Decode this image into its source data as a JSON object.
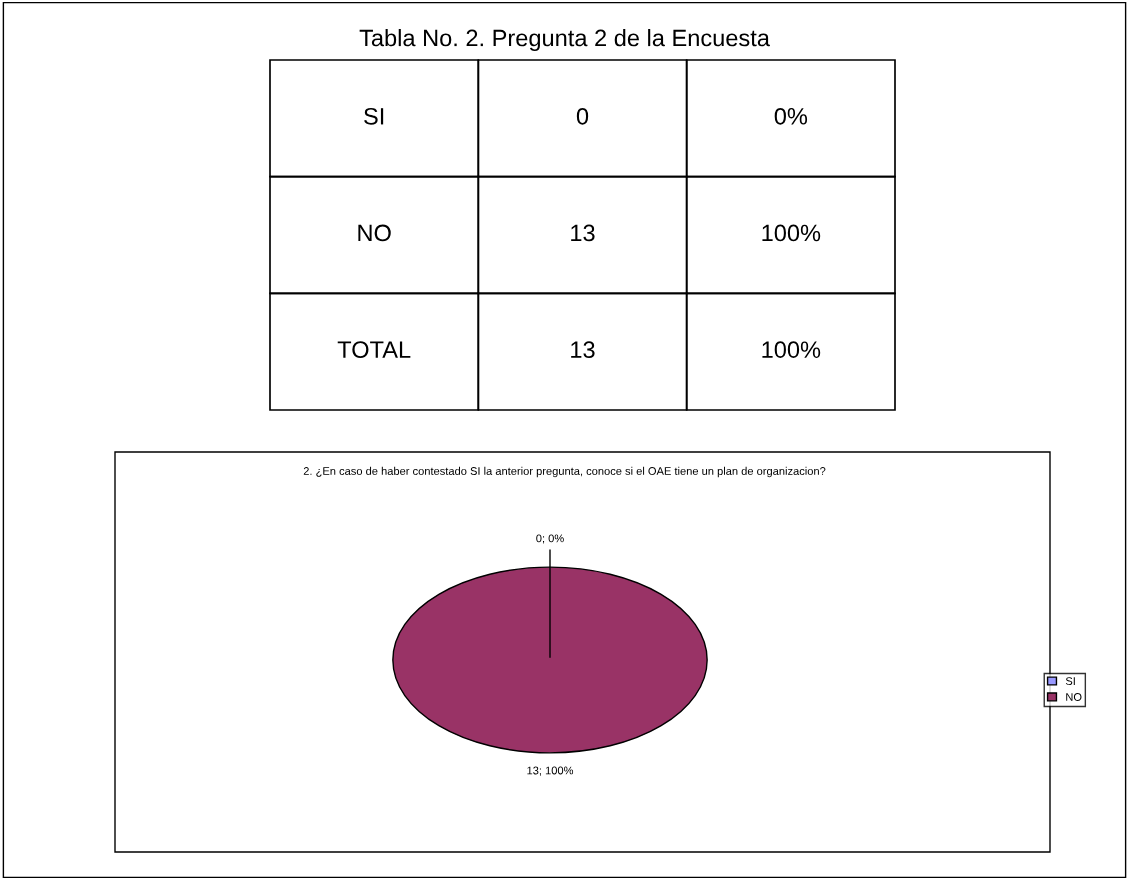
{
  "chart_data": [
    {
      "type": "other",
      "title": "Tabla No. 2. Pregunta 2 de la Encuesta",
      "annotations": [
        "SI",
        "0",
        "0%",
        "NO",
        "13",
        "100%",
        "TOTAL",
        "13",
        "100%"
      ]
    },
    {
      "type": "pie",
      "title": "2. ¿En caso de haber contestado SI la anterior pregunta, conoce si el OAE tiene un plan de organizacion?",
      "categories": [
        "SI",
        "NO"
      ],
      "values": [
        0,
        13
      ],
      "colors": [
        "#9999ff",
        "#993366"
      ],
      "value_labels": [
        "0; 0%",
        "13; 100%"
      ],
      "legend": "right"
    }
  ]
}
